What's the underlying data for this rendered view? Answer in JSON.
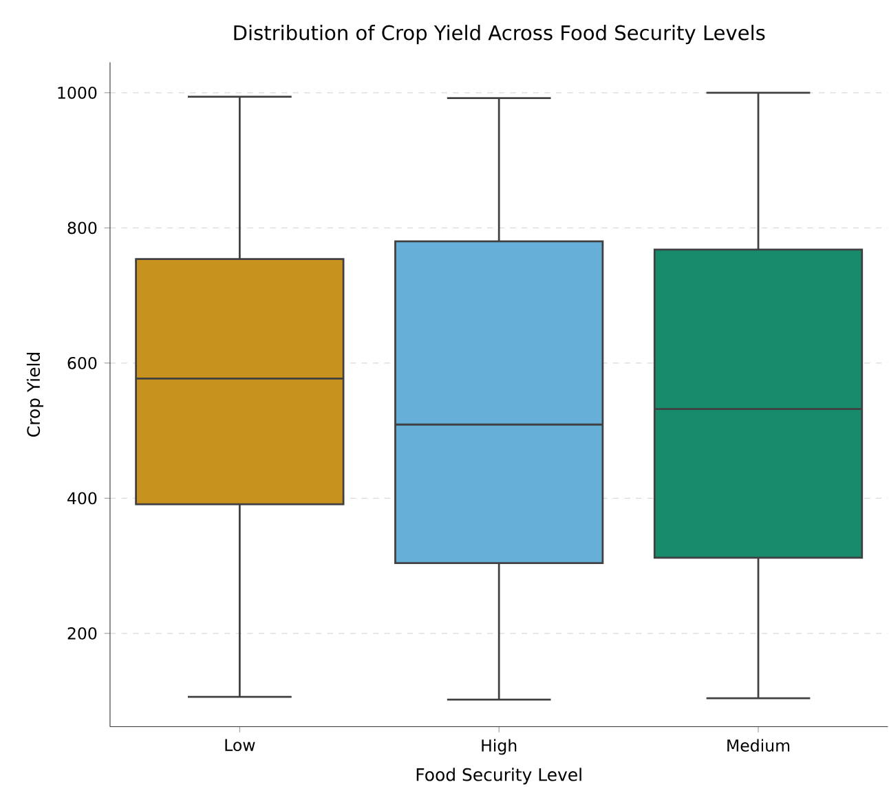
{
  "chart_data": {
    "type": "box",
    "title": "Distribution of Crop Yield Across Food Security Levels",
    "xlabel": "Food Security Level",
    "ylabel": "Crop Yield",
    "categories": [
      "Low",
      "High",
      "Medium"
    ],
    "boxes": [
      {
        "low": 106,
        "q1": 391,
        "median": 577,
        "q3": 754,
        "high": 994
      },
      {
        "low": 102,
        "q1": 304,
        "median": 509,
        "q3": 780,
        "high": 992
      },
      {
        "low": 104,
        "q1": 312,
        "median": 532,
        "q3": 768,
        "high": 1000
      }
    ],
    "colors": [
      "#c8921f",
      "#66afd8",
      "#178b6b"
    ],
    "ylim": [
      62,
      1045
    ],
    "yticks": [
      200,
      400,
      600,
      800,
      1000
    ],
    "grid": "y"
  }
}
